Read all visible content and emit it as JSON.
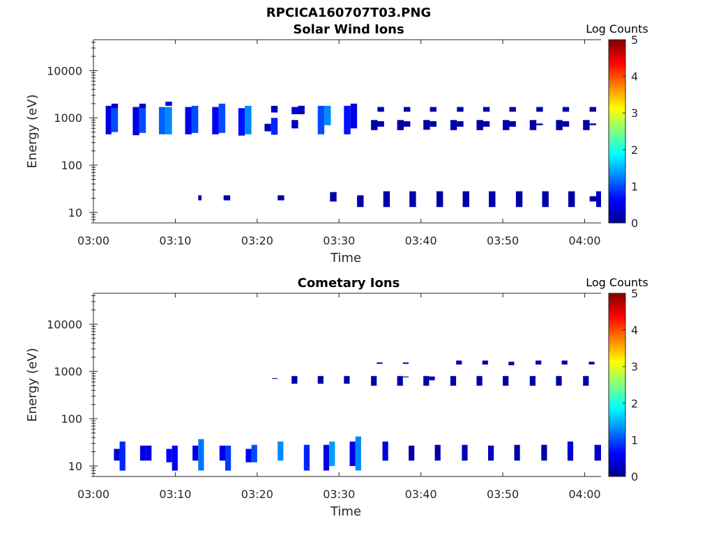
{
  "figure_title": "RPCICA160707T03.PNG",
  "chart_data": [
    {
      "type": "heatmap",
      "title": "Solar Wind Ions",
      "xlabel": "Time",
      "ylabel": "Energy (eV)",
      "xticks": [
        "03:00",
        "03:10",
        "03:20",
        "03:30",
        "03:40",
        "03:50",
        "04:00"
      ],
      "xlim_minutes": [
        0,
        62
      ],
      "yscale": "log",
      "ylim": [
        6,
        45000
      ],
      "yticks": [
        "10",
        "100",
        "1000",
        "10000"
      ],
      "colorbar": {
        "label": "Log Counts",
        "range": [
          0,
          5
        ],
        "ticks": [
          "0",
          "1",
          "2",
          "3",
          "4",
          "5"
        ]
      },
      "cells": [
        [
          1.5,
          2.2,
          450,
          1800,
          0.5
        ],
        [
          2.2,
          3.0,
          500,
          1600,
          1.0
        ],
        [
          2.2,
          3.0,
          1600,
          2000,
          0.4
        ],
        [
          4.8,
          5.6,
          430,
          1700,
          0.5
        ],
        [
          5.6,
          6.4,
          480,
          1600,
          1.0
        ],
        [
          5.6,
          6.4,
          1600,
          2000,
          0.4
        ],
        [
          8.0,
          8.8,
          450,
          1700,
          1.1
        ],
        [
          8.8,
          9.6,
          450,
          1700,
          1.3
        ],
        [
          8.8,
          9.6,
          1800,
          2200,
          0.4
        ],
        [
          11.2,
          12.0,
          450,
          1700,
          0.6
        ],
        [
          12.0,
          12.8,
          480,
          1800,
          1.0
        ],
        [
          14.5,
          15.3,
          450,
          1700,
          0.6
        ],
        [
          15.3,
          16.1,
          480,
          2000,
          1.0
        ],
        [
          17.7,
          18.5,
          420,
          1600,
          0.7
        ],
        [
          18.5,
          19.3,
          450,
          1800,
          1.3
        ],
        [
          20.9,
          21.7,
          520,
          750,
          0.3
        ],
        [
          21.7,
          22.5,
          440,
          1000,
          0.8
        ],
        [
          21.7,
          22.5,
          1300,
          1800,
          0.3
        ],
        [
          24.2,
          25.0,
          600,
          900,
          0.3
        ],
        [
          24.2,
          25.0,
          1200,
          1700,
          0.4
        ],
        [
          25.0,
          25.8,
          1200,
          1800,
          0.3
        ],
        [
          27.4,
          28.2,
          450,
          1800,
          1.0
        ],
        [
          28.2,
          29.0,
          700,
          1800,
          1.3
        ],
        [
          30.6,
          31.4,
          450,
          1800,
          0.7
        ],
        [
          31.4,
          32.2,
          600,
          2000,
          0.5
        ],
        [
          33.9,
          34.7,
          550,
          900,
          0.2
        ],
        [
          34.7,
          35.5,
          650,
          850,
          0.2
        ],
        [
          34.7,
          35.5,
          1350,
          1700,
          0.2
        ],
        [
          37.1,
          37.9,
          550,
          900,
          0.2
        ],
        [
          37.9,
          38.7,
          650,
          850,
          0.2
        ],
        [
          37.9,
          38.7,
          1350,
          1700,
          0.2
        ],
        [
          40.3,
          41.1,
          560,
          900,
          0.2
        ],
        [
          41.1,
          41.9,
          650,
          850,
          0.2
        ],
        [
          41.1,
          41.9,
          1350,
          1700,
          0.2
        ],
        [
          43.6,
          44.4,
          550,
          900,
          0.2
        ],
        [
          44.4,
          45.2,
          650,
          850,
          0.2
        ],
        [
          44.4,
          45.2,
          1350,
          1700,
          0.2
        ],
        [
          46.8,
          47.6,
          550,
          900,
          0.2
        ],
        [
          47.6,
          48.4,
          650,
          850,
          0.2
        ],
        [
          47.6,
          48.4,
          1350,
          1700,
          0.2
        ],
        [
          50.0,
          50.8,
          550,
          900,
          0.2
        ],
        [
          50.8,
          51.6,
          650,
          850,
          0.2
        ],
        [
          50.8,
          51.6,
          1350,
          1700,
          0.2
        ],
        [
          53.3,
          54.1,
          550,
          900,
          0.2
        ],
        [
          54.1,
          54.9,
          700,
          760,
          0.2
        ],
        [
          54.1,
          54.9,
          1350,
          1700,
          0.2
        ],
        [
          56.5,
          57.3,
          550,
          900,
          0.2
        ],
        [
          57.3,
          58.1,
          650,
          850,
          0.2
        ],
        [
          57.3,
          58.1,
          1350,
          1700,
          0.2
        ],
        [
          59.8,
          60.6,
          550,
          900,
          0.2
        ],
        [
          60.6,
          61.4,
          700,
          760,
          0.2
        ],
        [
          60.6,
          61.4,
          1350,
          1700,
          0.2
        ],
        [
          12.8,
          13.2,
          18,
          23,
          0.2
        ],
        [
          15.9,
          16.7,
          18,
          23,
          0.2
        ],
        [
          22.5,
          23.3,
          18,
          23,
          0.2
        ],
        [
          28.9,
          29.7,
          17,
          27,
          0.2
        ],
        [
          32.2,
          33.0,
          13,
          23,
          0.2
        ],
        [
          35.4,
          36.2,
          13,
          28,
          0.2
        ],
        [
          38.6,
          39.4,
          13,
          28,
          0.2
        ],
        [
          41.9,
          42.7,
          13,
          28,
          0.2
        ],
        [
          45.1,
          45.9,
          13,
          28,
          0.2
        ],
        [
          48.3,
          49.1,
          13,
          28,
          0.2
        ],
        [
          51.6,
          52.4,
          13,
          28,
          0.2
        ],
        [
          54.8,
          55.6,
          13,
          28,
          0.2
        ],
        [
          58.0,
          58.8,
          13,
          28,
          0.2
        ],
        [
          60.6,
          61.4,
          17,
          22,
          0.2
        ],
        [
          61.4,
          62.0,
          13,
          28,
          0.3
        ]
      ]
    },
    {
      "type": "heatmap",
      "title": "Cometary Ions",
      "xlabel": "Time",
      "ylabel": "Energy (eV)",
      "xticks": [
        "03:00",
        "03:10",
        "03:20",
        "03:30",
        "03:40",
        "03:50",
        "04:00"
      ],
      "xlim_minutes": [
        0,
        62
      ],
      "yscale": "log",
      "ylim": [
        6,
        45000
      ],
      "yticks": [
        "10",
        "100",
        "1000",
        "10000"
      ],
      "colorbar": {
        "label": "Log Counts",
        "range": [
          0,
          5
        ],
        "ticks": [
          "0",
          "1",
          "2",
          "3",
          "4",
          "5"
        ]
      },
      "cells": [
        [
          2.5,
          3.2,
          13,
          23,
          0.4
        ],
        [
          3.2,
          3.9,
          8,
          33,
          0.8
        ],
        [
          5.7,
          6.4,
          13,
          27,
          0.5
        ],
        [
          6.4,
          7.1,
          13,
          27,
          0.5
        ],
        [
          8.9,
          9.6,
          12,
          23,
          0.6
        ],
        [
          9.6,
          10.3,
          8,
          27,
          0.6
        ],
        [
          12.1,
          12.8,
          13,
          27,
          0.5
        ],
        [
          12.8,
          13.5,
          8,
          37,
          1.2
        ],
        [
          15.4,
          16.1,
          13,
          27,
          0.5
        ],
        [
          16.1,
          16.8,
          8,
          27,
          0.9
        ],
        [
          18.6,
          19.3,
          12,
          23,
          0.6
        ],
        [
          19.3,
          20.0,
          12,
          28,
          1.0
        ],
        [
          21.8,
          22.5,
          700,
          720,
          0.2
        ],
        [
          22.5,
          23.2,
          13,
          33,
          1.3
        ],
        [
          24.2,
          24.9,
          550,
          800,
          0.2
        ],
        [
          25.7,
          26.4,
          8,
          28,
          0.8
        ],
        [
          27.4,
          28.1,
          550,
          800,
          0.2
        ],
        [
          28.1,
          28.8,
          8,
          28,
          0.5
        ],
        [
          28.8,
          29.5,
          10,
          33,
          1.4
        ],
        [
          30.6,
          31.3,
          550,
          800,
          0.2
        ],
        [
          31.3,
          32.0,
          10,
          33,
          0.5
        ],
        [
          32.0,
          32.7,
          8,
          42,
          1.3
        ],
        [
          33.9,
          34.6,
          500,
          800,
          0.2
        ],
        [
          34.6,
          35.3,
          1450,
          1550,
          0.2
        ],
        [
          35.3,
          36.0,
          13,
          33,
          0.5
        ],
        [
          37.1,
          37.8,
          500,
          800,
          0.2
        ],
        [
          37.8,
          38.5,
          750,
          780,
          0.2
        ],
        [
          37.8,
          38.5,
          1450,
          1550,
          0.2
        ],
        [
          38.5,
          39.2,
          13,
          27,
          0.2
        ],
        [
          40.3,
          41.0,
          500,
          800,
          0.2
        ],
        [
          41.0,
          41.7,
          650,
          780,
          0.2
        ],
        [
          41.7,
          42.4,
          13,
          28,
          0.2
        ],
        [
          43.6,
          44.3,
          500,
          800,
          0.2
        ],
        [
          44.3,
          45.0,
          1400,
          1700,
          0.2
        ],
        [
          45.0,
          45.7,
          13,
          28,
          0.3
        ],
        [
          46.8,
          47.5,
          500,
          800,
          0.2
        ],
        [
          47.5,
          48.2,
          1400,
          1700,
          0.2
        ],
        [
          48.2,
          48.9,
          13,
          27,
          0.3
        ],
        [
          50.0,
          50.7,
          500,
          800,
          0.2
        ],
        [
          50.7,
          51.4,
          1350,
          1600,
          0.2
        ],
        [
          51.4,
          52.1,
          13,
          28,
          0.2
        ],
        [
          53.3,
          54.0,
          500,
          800,
          0.2
        ],
        [
          54.0,
          54.7,
          1400,
          1700,
          0.2
        ],
        [
          54.7,
          55.4,
          13,
          28,
          0.2
        ],
        [
          56.5,
          57.2,
          500,
          800,
          0.2
        ],
        [
          57.2,
          57.9,
          1400,
          1700,
          0.2
        ],
        [
          57.9,
          58.6,
          13,
          33,
          0.4
        ],
        [
          59.8,
          60.5,
          500,
          800,
          0.2
        ],
        [
          60.5,
          61.2,
          1400,
          1600,
          0.2
        ],
        [
          61.2,
          62.0,
          13,
          28,
          0.4
        ]
      ]
    }
  ]
}
